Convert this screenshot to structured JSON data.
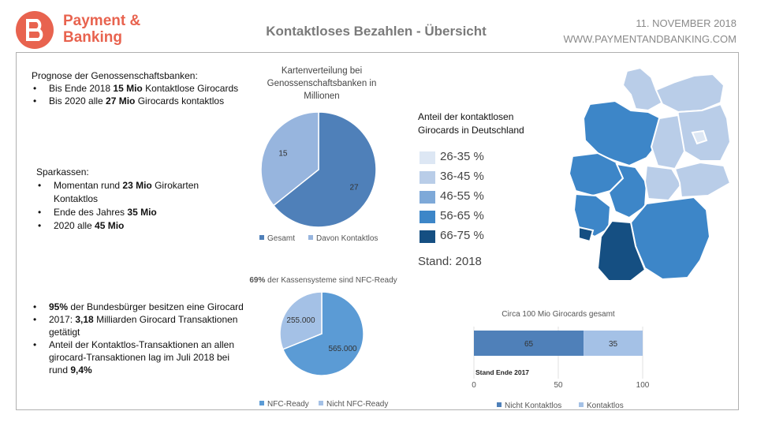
{
  "header": {
    "logo_line1": "Payment &",
    "logo_line2": "Banking",
    "title": "Kontaktloses Bezahlen - Übersicht",
    "date": "11. NOVEMBER 2018",
    "website": "WWW.PAYMENTANDBANKING.COM"
  },
  "genossenschaft": {
    "heading": "Prognose der Genossenschaftsbanken:",
    "b1_pre": "Bis Ende 2018 ",
    "b1_bold": "15 Mio",
    "b1_post": " Kontaktlose Girocards",
    "b2_pre": "Bis 2020 alle ",
    "b2_bold": "27 Mio",
    "b2_post": " Girocards kontaktlos"
  },
  "sparkassen": {
    "heading": "Sparkassen:",
    "b1_pre": "Momentan rund ",
    "b1_bold": "23 Mio",
    "b1_post": " Girokarten Kontaktlos",
    "b2_pre": "Ende des Jahres ",
    "b2_bold": "35 Mio",
    "b3_pre": "2020 alle ",
    "b3_bold": "45 Mio"
  },
  "facts": {
    "b1_bold": "95%",
    "b1_post": " der Bundesbürger besitzen eine Girocard",
    "b2_pre": "2017: ",
    "b2_bold": "3,18",
    "b2_post": " Milliarden Girocard Transaktionen getätigt",
    "b3_pre": "Anteil der Kontaktlos-Transaktionen an allen girocard-Transaktionen lag im Juli 2018 bei rund ",
    "b3_bold": "9,4%"
  },
  "map_legend": {
    "title_line1": "Anteil der kontaktlosen",
    "title_line2": "Girocards in Deutschland",
    "items": [
      {
        "label": "26-35 %",
        "color": "#dde7f4"
      },
      {
        "label": "36-45 %",
        "color": "#b9cde8"
      },
      {
        "label": "46-55 %",
        "color": "#7ea9d8"
      },
      {
        "label": "56-65 %",
        "color": "#3d86c8"
      },
      {
        "label": "66-75 %",
        "color": "#154f82"
      }
    ],
    "stand": "Stand: 2018"
  },
  "chart_data": [
    {
      "type": "pie",
      "title": "Kartenverteilung bei Genossenschaftsbanken in Millionen",
      "title_lines": [
        "Kartenverteilung bei",
        "Genossenschaftsbanken in",
        "Millionen"
      ],
      "categories": [
        "Gesamt",
        "Davon Kontaktlos"
      ],
      "values": [
        27,
        15
      ],
      "colors": [
        "#4f80b9",
        "#97b5de"
      ],
      "data_labels": [
        "27",
        "15"
      ],
      "legend_position": "bottom"
    },
    {
      "type": "pie",
      "title_bold": "69%",
      "title_rest": " der Kassensysteme sind NFC-Ready",
      "categories": [
        "NFC-Ready",
        "Nicht NFC-Ready"
      ],
      "values": [
        565000,
        255000
      ],
      "colors": [
        "#5b9bd5",
        "#a4c1e6"
      ],
      "data_labels": [
        "565.000",
        "255.000"
      ],
      "legend_position": "bottom"
    },
    {
      "type": "bar",
      "orientation": "horizontal",
      "stacked": true,
      "title": "Circa 100 Mio Girocards gesamt",
      "categories": [
        "Stand Ende 2017"
      ],
      "series": [
        {
          "name": "Nicht Kontaktlos",
          "values": [
            65
          ],
          "color": "#4f80b9"
        },
        {
          "name": "Kontaktlos",
          "values": [
            35
          ],
          "color": "#a4c1e6"
        }
      ],
      "xlim": [
        0,
        100
      ],
      "xticks": [
        "0",
        "50",
        "100"
      ],
      "legend_position": "bottom"
    }
  ]
}
